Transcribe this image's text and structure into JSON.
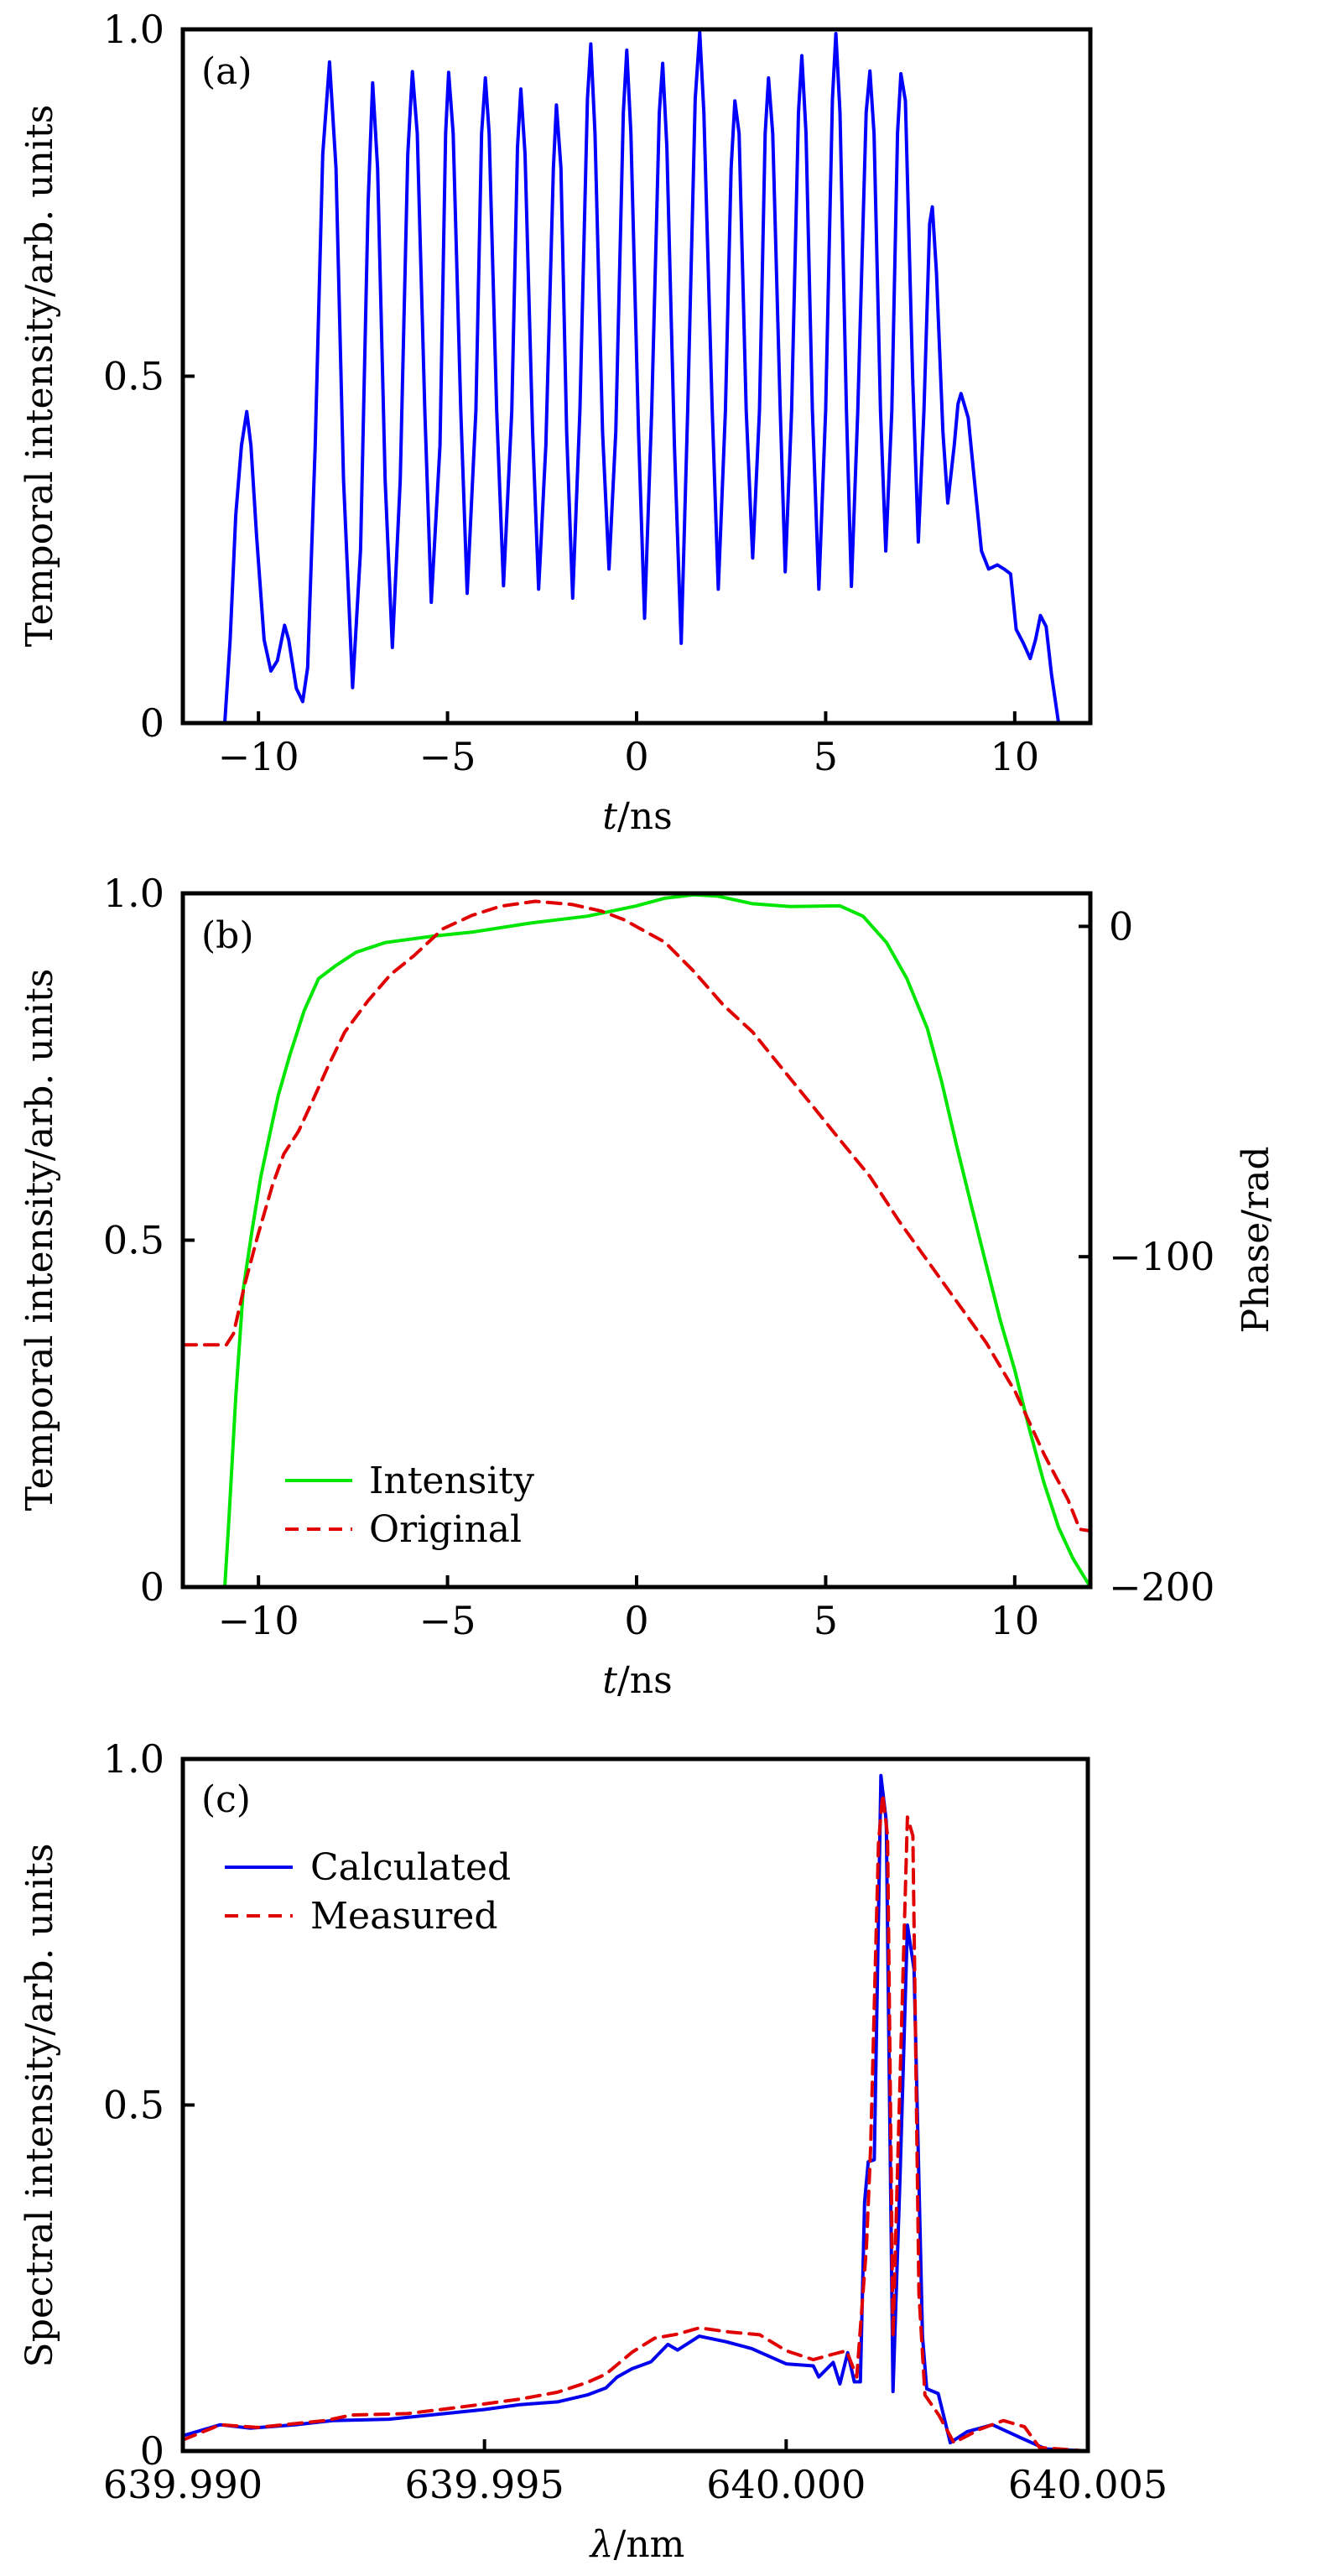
{
  "chart_data": [
    {
      "id": "a",
      "type": "line",
      "panel_label": "(a)",
      "title": "",
      "xlabel": "t/ns",
      "xlabel_italic": "t",
      "xlabel_rest": "/ns",
      "ylabel": "Temporal intensity/arb. units",
      "xlim": [
        -12,
        12
      ],
      "ylim": [
        0,
        1.0
      ],
      "xticks": [
        -10,
        -5,
        0,
        5,
        10
      ],
      "xtick_labels": [
        "−10",
        "−5",
        "0",
        "5",
        "10"
      ],
      "yticks": [
        0,
        0.5,
        1.0
      ],
      "ytick_labels": [
        "0",
        "0.5",
        "1.0"
      ],
      "grid": false,
      "legend": null,
      "series": [
        {
          "name": "Temporal intensity",
          "color": "#0000ff",
          "dash": "solid",
          "x": [
            -12,
            -10.89,
            -10.75,
            -10.6,
            -10.45,
            -10.31,
            -10.2,
            -10.05,
            -9.85,
            -9.67,
            -9.5,
            -9.31,
            -9.2,
            -9.0,
            -8.83,
            -8.7,
            -8.5,
            -8.3,
            -8.12,
            -7.95,
            -7.75,
            -7.51,
            -7.3,
            -7.1,
            -6.98,
            -6.85,
            -6.65,
            -6.46,
            -6.25,
            -6.05,
            -5.93,
            -5.8,
            -5.6,
            -5.43,
            -5.2,
            -5.05,
            -4.97,
            -4.85,
            -4.65,
            -4.48,
            -4.25,
            -4.1,
            -4.0,
            -3.9,
            -3.7,
            -3.52,
            -3.3,
            -3.15,
            -3.06,
            -2.95,
            -2.75,
            -2.59,
            -2.4,
            -2.2,
            -2.12,
            -2.0,
            -1.85,
            -1.69,
            -1.5,
            -1.3,
            -1.21,
            -1.1,
            -0.9,
            -0.73,
            -0.55,
            -0.35,
            -0.26,
            -0.15,
            0.05,
            0.21,
            0.4,
            0.6,
            0.69,
            0.8,
            1.0,
            1.18,
            1.35,
            1.55,
            1.67,
            1.78,
            2.0,
            2.16,
            2.35,
            2.5,
            2.6,
            2.71,
            2.9,
            3.07,
            3.25,
            3.4,
            3.49,
            3.6,
            3.8,
            3.93,
            4.1,
            4.28,
            4.37,
            4.48,
            4.65,
            4.82,
            5.0,
            5.18,
            5.27,
            5.38,
            5.55,
            5.68,
            5.85,
            6.07,
            6.17,
            6.28,
            6.45,
            6.59,
            6.75,
            6.9,
            6.99,
            7.11,
            7.3,
            7.45,
            7.6,
            7.75,
            7.82,
            7.93,
            8.1,
            8.23,
            8.4,
            8.5,
            8.58,
            8.77,
            8.92,
            9.12,
            9.31,
            9.54,
            9.72,
            9.89,
            10.04,
            10.23,
            10.41,
            10.55,
            10.68,
            10.83,
            10.97,
            11.16,
            12
          ],
          "y": [
            0,
            0,
            0.12,
            0.3,
            0.4,
            0.449,
            0.4,
            0.27,
            0.12,
            0.075,
            0.09,
            0.141,
            0.12,
            0.05,
            0.031,
            0.08,
            0.4,
            0.82,
            0.953,
            0.8,
            0.35,
            0.051,
            0.25,
            0.75,
            0.923,
            0.8,
            0.35,
            0.109,
            0.35,
            0.82,
            0.939,
            0.85,
            0.45,
            0.174,
            0.4,
            0.85,
            0.938,
            0.85,
            0.45,
            0.187,
            0.45,
            0.85,
            0.93,
            0.85,
            0.45,
            0.198,
            0.45,
            0.83,
            0.914,
            0.82,
            0.42,
            0.193,
            0.4,
            0.8,
            0.891,
            0.8,
            0.42,
            0.18,
            0.45,
            0.9,
            0.979,
            0.85,
            0.42,
            0.222,
            0.42,
            0.88,
            0.97,
            0.85,
            0.42,
            0.151,
            0.45,
            0.88,
            0.951,
            0.83,
            0.4,
            0.115,
            0.45,
            0.9,
            0.996,
            0.88,
            0.45,
            0.193,
            0.45,
            0.8,
            0.897,
            0.85,
            0.45,
            0.238,
            0.45,
            0.85,
            0.93,
            0.85,
            0.45,
            0.218,
            0.45,
            0.88,
            0.962,
            0.85,
            0.45,
            0.193,
            0.45,
            0.9,
            0.994,
            0.88,
            0.45,
            0.197,
            0.45,
            0.88,
            0.94,
            0.85,
            0.45,
            0.248,
            0.45,
            0.85,
            0.936,
            0.897,
            0.5,
            0.261,
            0.45,
            0.72,
            0.744,
            0.65,
            0.42,
            0.317,
            0.4,
            0.46,
            0.475,
            0.44,
            0.358,
            0.248,
            0.222,
            0.228,
            0.222,
            0.215,
            0.135,
            0.115,
            0.093,
            0.12,
            0.155,
            0.139,
            0.071,
            0,
            0
          ]
        }
      ]
    },
    {
      "id": "b",
      "type": "line",
      "panel_label": "(b)",
      "title": "",
      "xlabel": "t/ns",
      "xlabel_italic": "t",
      "xlabel_rest": "/ns",
      "ylabel": "Temporal intensity/arb. units",
      "y2label": "Phase/rad",
      "xlim": [
        -12,
        12
      ],
      "ylim": [
        0,
        1.0
      ],
      "y2lim": [
        -200,
        10
      ],
      "xticks": [
        -10,
        -5,
        0,
        5,
        10
      ],
      "xtick_labels": [
        "−10",
        "−5",
        "0",
        "5",
        "10"
      ],
      "yticks": [
        0,
        0.5,
        1.0
      ],
      "ytick_labels": [
        "0",
        "0.5",
        "1.0"
      ],
      "y2ticks": [
        0,
        -100,
        -200
      ],
      "y2tick_labels": [
        "0",
        "−100",
        "−200"
      ],
      "grid": false,
      "legend": {
        "position": "lower-left",
        "entries": [
          "Intensity",
          "Original"
        ]
      },
      "series": [
        {
          "name": "Intensity",
          "axis": "left",
          "color": "#00e600",
          "dash": "solid",
          "x": [
            -12,
            -10.89,
            -10.78,
            -10.6,
            -10.4,
            -10.17,
            -9.94,
            -9.71,
            -9.48,
            -9.17,
            -8.79,
            -8.41,
            -7.95,
            -7.42,
            -6.65,
            -5.43,
            -4.36,
            -2.83,
            -1.31,
            0,
            0.75,
            1.52,
            2.14,
            3.07,
            4.07,
            5.38,
            5.99,
            6.61,
            7.15,
            7.69,
            8.07,
            8.46,
            8.84,
            9.23,
            9.62,
            10.0,
            10.38,
            10.77,
            11.16,
            11.54,
            12
          ],
          "y": [
            0,
            0,
            0.099,
            0.274,
            0.43,
            0.514,
            0.591,
            0.65,
            0.708,
            0.767,
            0.831,
            0.877,
            0.896,
            0.915,
            0.929,
            0.938,
            0.944,
            0.957,
            0.967,
            0.982,
            0.993,
            0.998,
            0.996,
            0.985,
            0.981,
            0.982,
            0.967,
            0.929,
            0.877,
            0.805,
            0.728,
            0.637,
            0.553,
            0.468,
            0.384,
            0.313,
            0.229,
            0.151,
            0.086,
            0.041,
            0
          ]
        },
        {
          "name": "Original",
          "axis": "right",
          "color": "#e00000",
          "dash": "dashed",
          "x": [
            -12,
            -10.85,
            -10.66,
            -10.36,
            -10.01,
            -9.63,
            -9.33,
            -8.94,
            -8.56,
            -8.18,
            -7.72,
            -7.11,
            -6.5,
            -5.89,
            -5.13,
            -4.36,
            -3.6,
            -2.68,
            -1.69,
            -0.92,
            -0.31,
            0,
            0.75,
            1.52,
            2.3,
            3.07,
            3.84,
            4.62,
            5.39,
            6.17,
            6.94,
            7.71,
            8.48,
            9.25,
            10.02,
            10.79,
            11.41,
            11.72,
            12
          ],
          "y": [
            -126.7,
            -126.7,
            -123.3,
            -108.3,
            -93.3,
            -78.4,
            -68.9,
            -62.0,
            -52.6,
            -42.9,
            -32.0,
            -22.6,
            -14.5,
            -8.9,
            -0.8,
            3.3,
            6.1,
            7.6,
            6.6,
            4.6,
            1.9,
            -0.1,
            -4.8,
            -13.7,
            -23.9,
            -32.0,
            -42.9,
            -53.9,
            -64.8,
            -75.7,
            -89.2,
            -101.5,
            -113.8,
            -126.1,
            -141.0,
            -160.1,
            -173.6,
            -182.5,
            -183.0
          ]
        }
      ]
    },
    {
      "id": "c",
      "type": "line",
      "panel_label": "(c)",
      "title": "",
      "xlabel": "λ/nm",
      "xlabel_italic": "λ",
      "xlabel_rest": "/nm",
      "ylabel": "Spectral intensity/arb. units",
      "xlim": [
        639.99,
        640.005
      ],
      "ylim": [
        0,
        1.0
      ],
      "xticks": [
        639.99,
        639.995,
        640.0,
        640.005
      ],
      "xtick_labels": [
        "639.990",
        "639.995",
        "640.000",
        "640.005"
      ],
      "yticks": [
        0,
        0.5,
        1.0
      ],
      "ytick_labels": [
        "0",
        "0.5",
        "1.0"
      ],
      "grid": false,
      "legend": {
        "position": "upper-left",
        "entries": [
          "Calculated",
          "Measured"
        ]
      },
      "series": [
        {
          "name": "Calculated",
          "color": "#0000ee",
          "dash": "solid",
          "x": [
            639.99,
            639.99062,
            639.99112,
            639.99186,
            639.99248,
            639.99341,
            639.99434,
            639.995,
            639.99559,
            639.99621,
            639.9967,
            639.99701,
            639.9972,
            639.99745,
            639.99776,
            639.99804,
            639.9982,
            639.99856,
            639.999,
            639.99943,
            640.0,
            640.00045,
            640.00054,
            640.00078,
            640.00089,
            640.00102,
            640.00113,
            640.00123,
            640.0013,
            640.00136,
            640.00146,
            640.00157,
            640.00166,
            640.00177,
            640.00189,
            640.00201,
            640.00212,
            640.00226,
            640.00233,
            640.00252,
            640.00272,
            640.003,
            640.00342,
            640.00389,
            640.0043,
            640.005
          ],
          "y": [
            0.022,
            0.038,
            0.033,
            0.038,
            0.044,
            0.046,
            0.054,
            0.06,
            0.067,
            0.071,
            0.081,
            0.091,
            0.107,
            0.119,
            0.129,
            0.154,
            0.146,
            0.166,
            0.158,
            0.148,
            0.126,
            0.123,
            0.107,
            0.128,
            0.097,
            0.142,
            0.1,
            0.1,
            0.359,
            0.418,
            0.421,
            0.976,
            0.91,
            0.086,
            0.404,
            0.76,
            0.696,
            0.165,
            0.09,
            0.083,
            0.012,
            0.028,
            0.038,
            0.019,
            0.003,
            0
          ]
        },
        {
          "name": "Measured",
          "color": "#e00000",
          "dash": "dashed",
          "x": [
            639.99,
            639.99062,
            639.99124,
            639.99236,
            639.9928,
            639.99372,
            639.99465,
            639.99559,
            639.99621,
            639.9967,
            639.99701,
            639.99745,
            639.99782,
            639.9982,
            639.99856,
            639.99906,
            639.99956,
            640.0,
            640.00045,
            640.00078,
            640.001,
            640.00117,
            640.00133,
            640.0014,
            640.00153,
            640.0016,
            640.00168,
            640.00177,
            640.00185,
            640.00201,
            640.0021,
            640.0022,
            640.0023,
            640.00253,
            640.00278,
            640.0032,
            640.0036,
            640.00395,
            640.0042,
            640.005
          ],
          "y": [
            0.016,
            0.038,
            0.034,
            0.044,
            0.052,
            0.054,
            0.064,
            0.075,
            0.085,
            0.099,
            0.111,
            0.143,
            0.163,
            0.169,
            0.178,
            0.172,
            0.168,
            0.145,
            0.132,
            0.14,
            0.145,
            0.107,
            0.294,
            0.437,
            0.878,
            0.949,
            0.889,
            0.165,
            0.42,
            0.916,
            0.889,
            0.229,
            0.081,
            0.052,
            0.012,
            0.031,
            0.044,
            0.035,
            0.005,
            0
          ]
        }
      ]
    }
  ]
}
